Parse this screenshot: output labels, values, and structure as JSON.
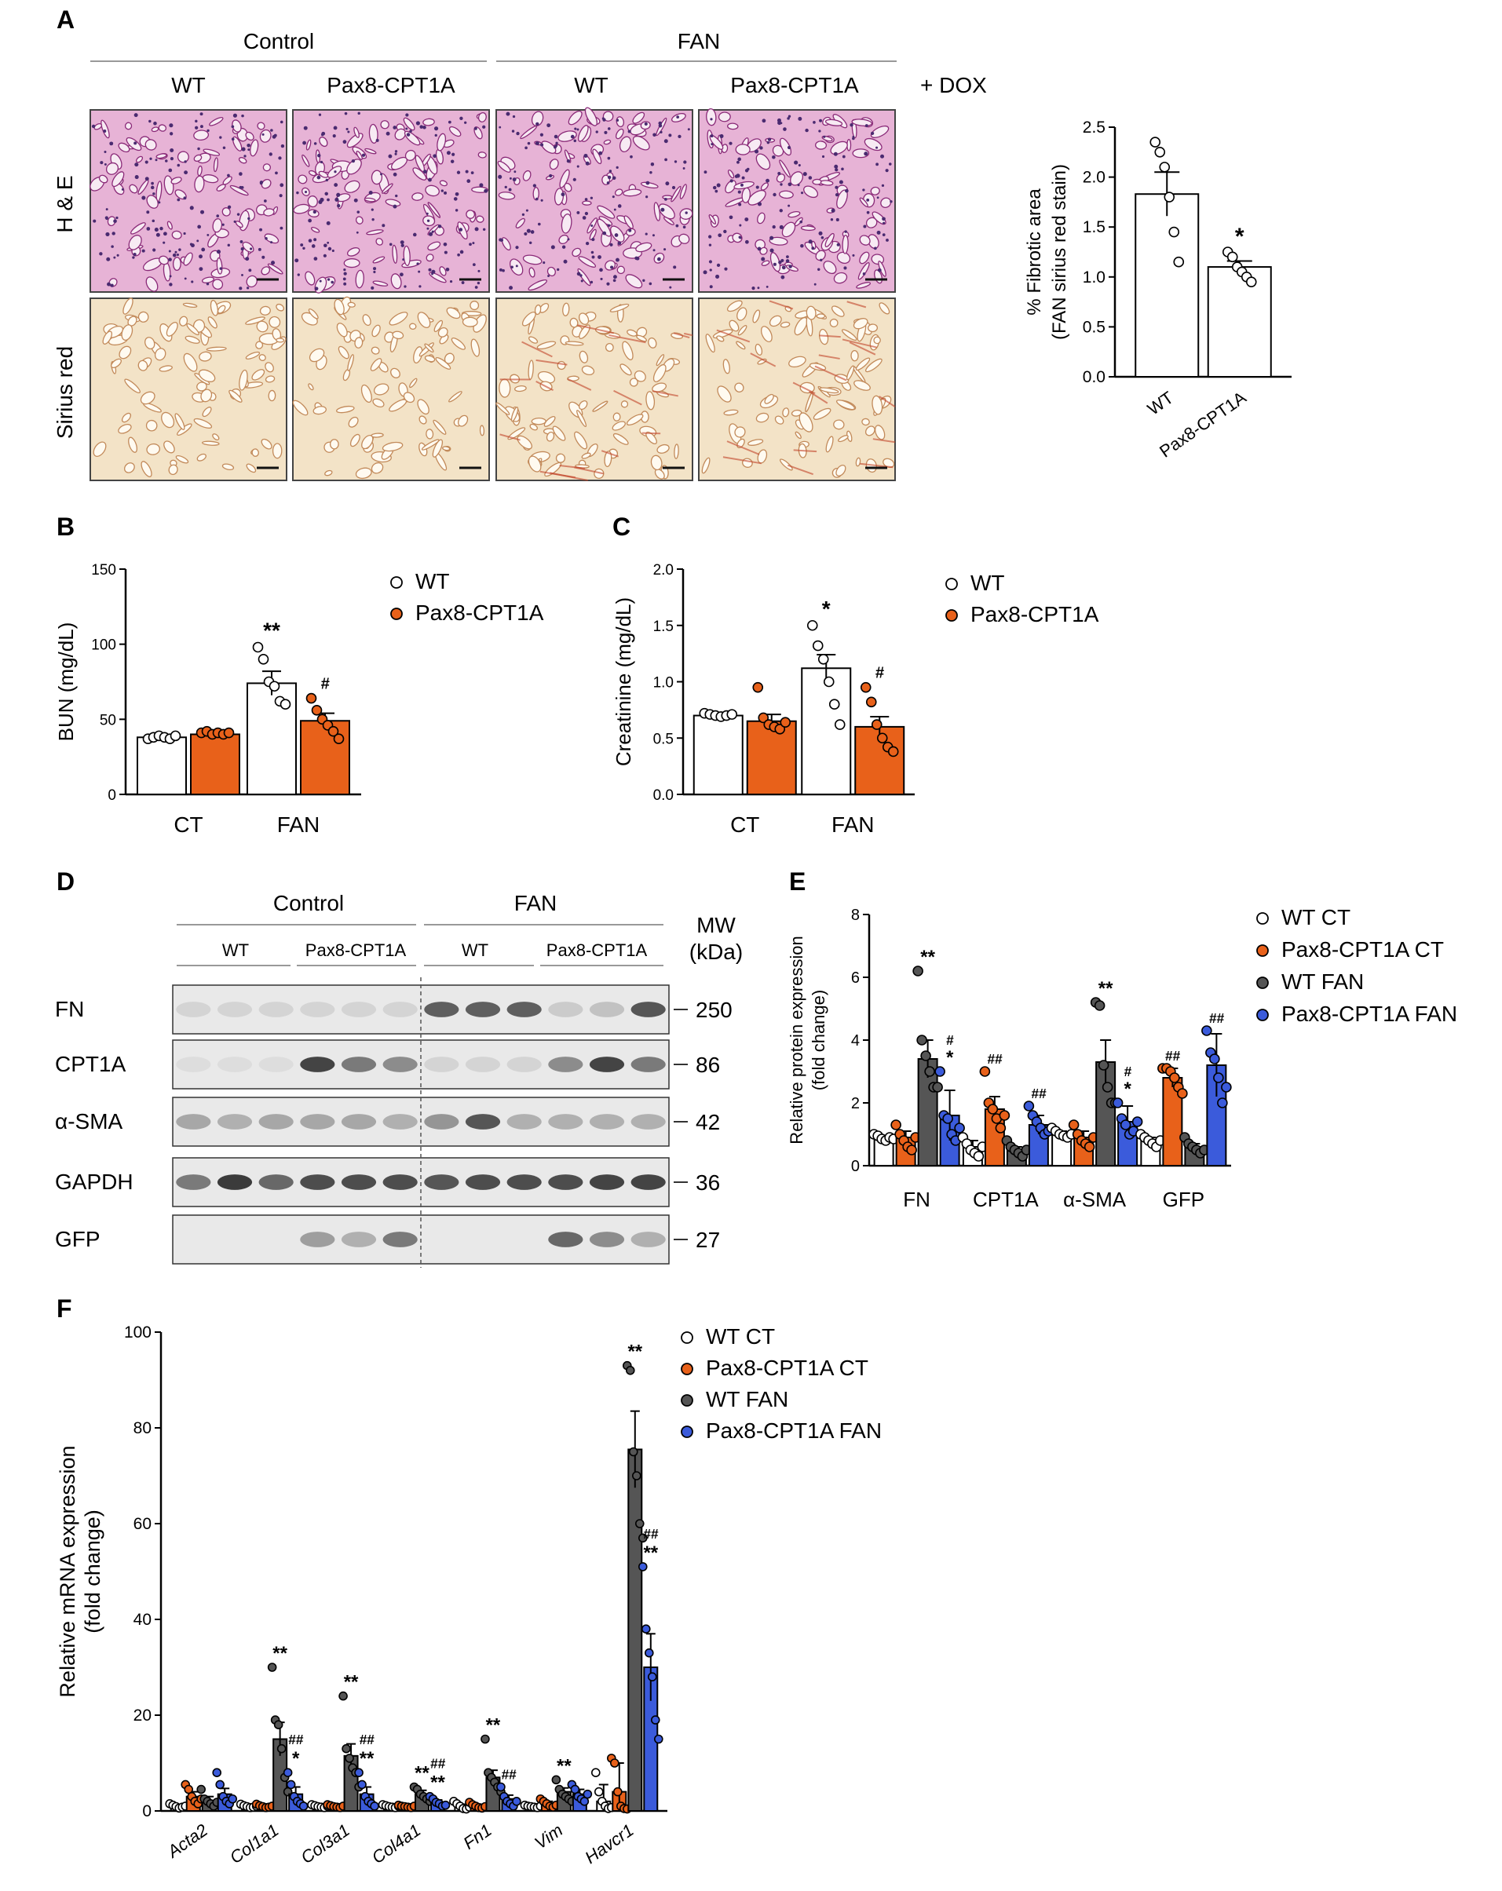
{
  "colors": {
    "wt_ct": "#ffffff",
    "pax_ct": "#e8611a",
    "wt_fan": "#555555",
    "pax_fan": "#3b5bdb",
    "he_tissue": "#c75a9e",
    "sirius_tissue": "#e3c79a"
  },
  "panelA": {
    "letter": "A",
    "group_labels": [
      "Control",
      "FAN"
    ],
    "column_labels": [
      "WT",
      "Pax8-CPT1A",
      "WT",
      "Pax8-CPT1A"
    ],
    "dox_label": "+ DOX",
    "row_labels": [
      "H & E",
      "Sirius red"
    ]
  },
  "panelD": {
    "letter": "D",
    "group_labels": [
      "Control",
      "FAN"
    ],
    "sub_labels": [
      "WT",
      "Pax8-CPT1A",
      "WT",
      "Pax8-CPT1A"
    ],
    "mw_header": [
      "MW",
      "(kDa)"
    ],
    "bands": [
      {
        "label": "FN",
        "mw": "250"
      },
      {
        "label": "CPT1A",
        "mw": "86"
      },
      {
        "label": "α-SMA",
        "mw": "42"
      },
      {
        "label": "GAPDH",
        "mw": "36"
      },
      {
        "label": "GFP",
        "mw": "27"
      }
    ]
  },
  "chart_data": [
    {
      "panel": "A",
      "type": "bar",
      "categories": [
        "WT",
        "Pax8-CPT1A"
      ],
      "values": [
        1.83,
        1.1
      ],
      "errors": [
        0.22,
        0.06
      ],
      "points": [
        [
          2.35,
          2.25,
          2.1,
          1.8,
          1.45,
          1.15
        ],
        [
          1.25,
          1.2,
          1.1,
          1.05,
          1.0,
          0.95
        ]
      ],
      "annotations": [
        "",
        "*"
      ],
      "ylabel": "% Fibrotic area\n(FAN sirius red stain)",
      "ylim": [
        0,
        2.5
      ],
      "yticks": [
        "0.0",
        "0.5",
        "1.0",
        "1.5",
        "2.0",
        "2.5"
      ]
    },
    {
      "panel": "B",
      "letter": "B",
      "type": "bar",
      "categories": [
        "CT",
        "FAN"
      ],
      "series": [
        {
          "name": "WT",
          "values": [
            38,
            74
          ],
          "errors": [
            1,
            8
          ],
          "points": [
            [
              37,
              38,
              39,
              38,
              37,
              39
            ],
            [
              98,
              90,
              75,
              72,
              62,
              60
            ]
          ],
          "annotations": [
            "",
            "**"
          ]
        },
        {
          "name": "Pax8-CPT1A",
          "values": [
            40,
            49
          ],
          "errors": [
            1,
            5
          ],
          "points": [
            [
              41,
              42,
              40,
              41,
              40,
              41
            ],
            [
              64,
              56,
              50,
              46,
              42,
              37
            ]
          ],
          "annotations": [
            "",
            "#"
          ]
        }
      ],
      "ylabel": "BUN (mg/dL)",
      "ylim": [
        0,
        150
      ],
      "yticks": [
        "0",
        "50",
        "100",
        "150"
      ]
    },
    {
      "panel": "C",
      "letter": "C",
      "type": "bar",
      "categories": [
        "CT",
        "FAN"
      ],
      "series": [
        {
          "name": "WT",
          "values": [
            0.7,
            1.12
          ],
          "errors": [
            0.02,
            0.12
          ],
          "points": [
            [
              0.72,
              0.71,
              0.7,
              0.69,
              0.7,
              0.71
            ],
            [
              1.5,
              1.32,
              1.2,
              1.0,
              0.8,
              0.62
            ]
          ],
          "annotations": [
            "",
            "*"
          ]
        },
        {
          "name": "Pax8-CPT1A",
          "values": [
            0.65,
            0.6
          ],
          "errors": [
            0.06,
            0.09
          ],
          "points": [
            [
              0.95,
              0.68,
              0.62,
              0.6,
              0.58,
              0.64
            ],
            [
              0.95,
              0.82,
              0.62,
              0.5,
              0.42,
              0.38
            ]
          ],
          "annotations": [
            "",
            "#"
          ]
        }
      ],
      "ylabel": "Creatinine (mg/dL)",
      "ylim": [
        0,
        2.0
      ],
      "yticks": [
        "0.0",
        "0.5",
        "1.0",
        "1.5",
        "2.0"
      ]
    },
    {
      "panel": "E",
      "letter": "E",
      "type": "bar",
      "categories": [
        "FN",
        "CPT1A",
        "α-SMA",
        "GFP"
      ],
      "series": [
        {
          "name": "WT CT",
          "values": [
            0.9,
            0.6,
            1.0,
            0.8
          ],
          "errors": [
            0.05,
            0.2,
            0.1,
            0.1
          ],
          "points": [
            [
              1.0,
              0.95,
              0.85,
              0.8,
              0.9,
              0.85
            ],
            [
              0.9,
              0.7,
              0.5,
              0.4,
              0.3,
              0.6
            ],
            [
              1.2,
              1.1,
              1.0,
              0.95,
              0.9,
              1.0
            ],
            [
              1.0,
              0.9,
              0.8,
              0.7,
              0.6,
              0.8
            ]
          ],
          "annotations": [
            "",
            "",
            "",
            ""
          ]
        },
        {
          "name": "Pax8-CPT1A CT",
          "values": [
            0.9,
            1.8,
            0.9,
            2.8
          ],
          "errors": [
            0.2,
            0.4,
            0.2,
            0.3
          ],
          "points": [
            [
              1.3,
              1.0,
              0.8,
              0.6,
              0.5,
              0.9
            ],
            [
              3.0,
              2.0,
              1.8,
              1.5,
              1.2,
              1.6
            ],
            [
              1.3,
              1.0,
              0.8,
              0.7,
              0.6,
              0.9
            ],
            [
              3.1,
              3.1,
              3.0,
              2.8,
              2.5,
              2.3
            ]
          ],
          "annotations": [
            "",
            "##",
            "",
            "##"
          ]
        },
        {
          "name": "WT FAN",
          "values": [
            3.4,
            0.5,
            3.3,
            0.6
          ],
          "errors": [
            0.6,
            0.1,
            0.7,
            0.1
          ],
          "points": [
            [
              6.2,
              4.0,
              3.5,
              3.0,
              2.5,
              2.5
            ],
            [
              0.8,
              0.6,
              0.5,
              0.4,
              0.3,
              0.5
            ],
            [
              5.2,
              5.1,
              3.2,
              2.5,
              2.0,
              2.0
            ],
            [
              0.9,
              0.7,
              0.6,
              0.5,
              0.4,
              0.5
            ]
          ],
          "annotations": [
            "**",
            "",
            "**",
            ""
          ]
        },
        {
          "name": "Pax8-CPT1A FAN",
          "values": [
            1.6,
            1.3,
            1.4,
            3.2
          ],
          "errors": [
            0.8,
            0.3,
            0.5,
            1.0
          ],
          "points": [
            [
              3.0,
              1.6,
              1.5,
              1.0,
              0.8,
              1.2
            ],
            [
              1.9,
              1.6,
              1.4,
              1.2,
              1.0,
              1.1
            ],
            [
              2.0,
              1.5,
              1.3,
              1.0,
              1.1,
              1.4
            ],
            [
              4.3,
              3.6,
              3.4,
              2.8,
              2.0,
              2.5
            ]
          ],
          "annotations": [
            "#\n*",
            "##",
            "#\n*",
            "##"
          ]
        }
      ],
      "ylabel": "Relative protein expression\n(fold change)",
      "ylim": [
        0,
        8
      ],
      "yticks": [
        "0",
        "2",
        "4",
        "6",
        "8"
      ]
    },
    {
      "panel": "F",
      "letter": "F",
      "type": "bar",
      "categories": [
        "Acta2",
        "Col1a1",
        "Col3a1",
        "Col4a1",
        "Fn1",
        "Vim",
        "Havcr1"
      ],
      "series": [
        {
          "name": "WT CT",
          "values": [
            1,
            1,
            1,
            1,
            1,
            1,
            2
          ],
          "errors": [
            0.3,
            0.3,
            0.3,
            0.3,
            0.4,
            0.3,
            3.5
          ],
          "points": [
            [
              1.5,
              1.2,
              0.9,
              0.6,
              0.8,
              1.0
            ],
            [
              1.4,
              1.1,
              0.9,
              0.7,
              0.8,
              1.0
            ],
            [
              1.3,
              1.1,
              0.9,
              0.8,
              0.7,
              1.0
            ],
            [
              1.3,
              1.1,
              0.9,
              0.8,
              0.7,
              1.0
            ],
            [
              2.0,
              1.5,
              1.0,
              0.5,
              0.4,
              0.8
            ],
            [
              1.2,
              1.0,
              0.9,
              0.8,
              0.7,
              1.0
            ],
            [
              8.0,
              4.0,
              2.0,
              1.0,
              0.5,
              0.7
            ]
          ],
          "annotations": [
            "",
            "",
            "",
            "",
            "",
            "",
            ""
          ]
        },
        {
          "name": "Pax8-CPT1A CT",
          "values": [
            3,
            1,
            1,
            1,
            1,
            1.5,
            4
          ],
          "errors": [
            1.0,
            0.3,
            0.3,
            0.2,
            0.4,
            0.5,
            6.0
          ],
          "points": [
            [
              5.5,
              4.5,
              3.0,
              2.0,
              1.5,
              2.5
            ],
            [
              1.4,
              1.1,
              0.9,
              0.7,
              0.8,
              1.0
            ],
            [
              1.3,
              1.1,
              0.9,
              0.8,
              0.7,
              1.0
            ],
            [
              1.2,
              1.0,
              0.9,
              0.8,
              0.7,
              1.0
            ],
            [
              1.8,
              1.3,
              1.0,
              0.7,
              0.6,
              0.9
            ],
            [
              2.5,
              2.0,
              1.5,
              1.0,
              0.8,
              1.2
            ],
            [
              11.0,
              10.0,
              4.0,
              1.0,
              0.5,
              0.4
            ]
          ],
          "annotations": [
            "",
            "",
            "",
            "",
            "",
            "",
            ""
          ]
        },
        {
          "name": "WT FAN",
          "values": [
            2,
            15,
            11.5,
            3.5,
            7,
            4,
            75.5
          ],
          "errors": [
            1.0,
            3.5,
            2.5,
            0.8,
            1.5,
            0.8,
            8.0
          ],
          "points": [
            [
              4.5,
              2.5,
              2.0,
              1.5,
              1.0,
              1.8
            ],
            [
              30.0,
              19.0,
              18.0,
              13.0,
              7.0,
              4.0
            ],
            [
              24.0,
              13.0,
              11.0,
              9.0,
              8.0,
              5.0
            ],
            [
              5.0,
              4.5,
              3.5,
              3.0,
              2.5,
              2.0
            ],
            [
              15.0,
              8.0,
              7.0,
              6.0,
              5.0,
              4.0
            ],
            [
              6.5,
              4.5,
              3.5,
              3.0,
              2.5,
              2.0
            ],
            [
              93.0,
              92.0,
              75.0,
              70.0,
              60.0,
              57.0
            ]
          ],
          "annotations": [
            "",
            "**",
            "**",
            "**",
            "**",
            "**",
            "**"
          ]
        },
        {
          "name": "Pax8-CPT1A FAN",
          "values": [
            3.5,
            3.5,
            3.5,
            1.8,
            2.5,
            3.5,
            30
          ],
          "errors": [
            1.2,
            1.5,
            1.5,
            0.5,
            0.8,
            1.0,
            7.0
          ],
          "points": [
            [
              8.0,
              5.5,
              3.0,
              2.0,
              1.5,
              2.5
            ],
            [
              8.0,
              5.5,
              3.0,
              2.0,
              1.5,
              1.0
            ],
            [
              8.0,
              5.5,
              3.0,
              2.0,
              1.5,
              1.0
            ],
            [
              3.0,
              2.5,
              1.8,
              1.5,
              1.0,
              1.2
            ],
            [
              5.0,
              3.0,
              2.0,
              1.5,
              1.0,
              2.0
            ],
            [
              5.5,
              4.5,
              3.0,
              2.5,
              2.0,
              3.5
            ],
            [
              51.0,
              38.0,
              33.0,
              28.0,
              19.0,
              15.0
            ]
          ],
          "annotations": [
            "",
            "##\n*",
            "##\n**",
            "##\n**",
            "##",
            "",
            "##\n**"
          ]
        }
      ],
      "ylabel": "Relative mRNA expression\n(fold change)",
      "ylim": [
        0,
        100
      ],
      "yticks": [
        "0",
        "20",
        "40",
        "60",
        "80",
        "100"
      ]
    }
  ]
}
